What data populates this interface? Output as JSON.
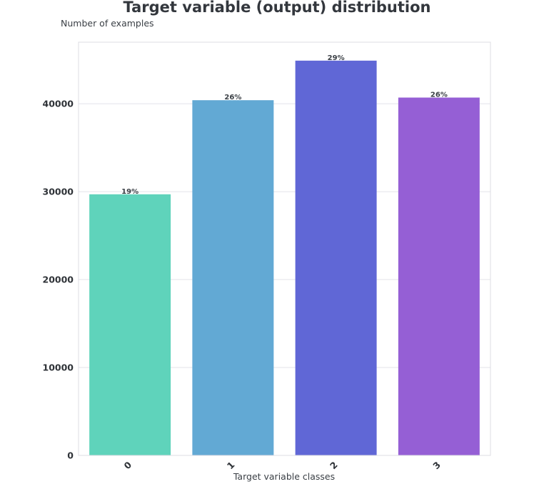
{
  "chart_data": {
    "type": "bar",
    "title": "Target variable (output) distribution",
    "ylabel": "Number of examples",
    "xlabel": "Target variable classes",
    "categories": [
      "0",
      "1",
      "2",
      "3"
    ],
    "values": [
      29700,
      40400,
      44900,
      40700
    ],
    "data_labels": [
      "19%",
      "26%",
      "29%",
      "26%"
    ],
    "colors": [
      "#5fd3bb",
      "#62a9d4",
      "#6067d6",
      "#955fd5"
    ],
    "ylim": [
      0,
      47000
    ],
    "yticks": [
      0,
      10000,
      20000,
      30000,
      40000
    ],
    "grid": true,
    "legend": "none"
  }
}
